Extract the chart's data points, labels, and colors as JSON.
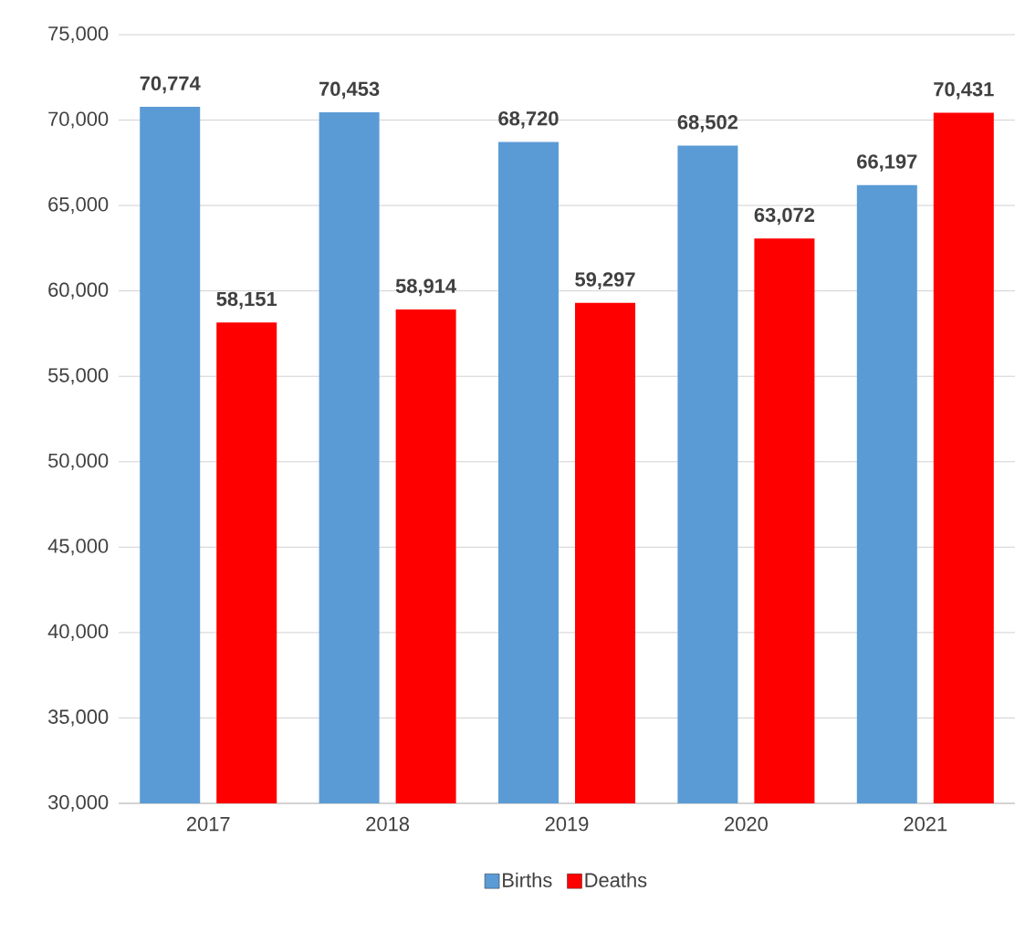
{
  "chart_data": {
    "type": "bar",
    "categories": [
      "2017",
      "2018",
      "2019",
      "2020",
      "2021"
    ],
    "series": [
      {
        "name": "Births",
        "color": "#5b9bd5",
        "values": [
          70774,
          70453,
          68720,
          68502,
          66197
        ],
        "value_labels": [
          "70,774",
          "70,453",
          "68,720",
          "68,502",
          "66,197"
        ]
      },
      {
        "name": "Deaths",
        "color": "#ff0000",
        "values": [
          58151,
          58914,
          59297,
          63072,
          70431
        ],
        "value_labels": [
          "58,151",
          "58,914",
          "59,297",
          "63,072",
          "70,431"
        ]
      }
    ],
    "ylim": [
      30000,
      75000
    ],
    "yticks": [
      {
        "value": 30000,
        "label": "30,000"
      },
      {
        "value": 35000,
        "label": "35,000"
      },
      {
        "value": 40000,
        "label": "40,000"
      },
      {
        "value": 45000,
        "label": "45,000"
      },
      {
        "value": 50000,
        "label": "50,000"
      },
      {
        "value": 55000,
        "label": "55,000"
      },
      {
        "value": 60000,
        "label": "60,000"
      },
      {
        "value": 65000,
        "label": "65,000"
      },
      {
        "value": 70000,
        "label": "70,000"
      },
      {
        "value": 75000,
        "label": "75,000"
      }
    ],
    "grid": "y",
    "legend": "bottom"
  }
}
